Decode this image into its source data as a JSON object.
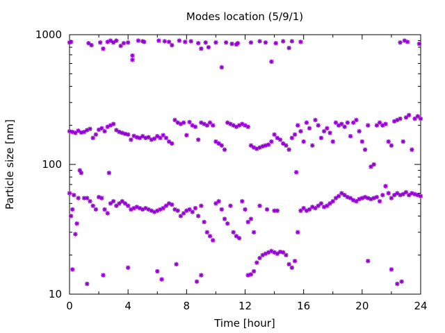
{
  "chart_data": {
    "type": "scatter",
    "title": "Modes location (5/9/1)",
    "xlabel": "Time [hour]",
    "ylabel": "Particle size [nm]",
    "xlim": [
      0,
      24
    ],
    "ylim": [
      10,
      1000
    ],
    "yscale": "log",
    "grid": false,
    "legend": "none",
    "marker_color": "#9400d3",
    "x_ticks": [
      "0",
      "4",
      "8",
      "12",
      "16",
      "20",
      "24"
    ],
    "x_tick_values": [
      0,
      4,
      8,
      12,
      16,
      20,
      24
    ],
    "y_ticks": [
      "10",
      "100",
      "1000"
    ],
    "y_tick_values": [
      10,
      100,
      1000
    ],
    "series": [
      {
        "values": [
          [
            0,
            870
          ],
          [
            0.1,
            880
          ],
          [
            1.3,
            860
          ],
          [
            1.5,
            830
          ],
          [
            2.1,
            870
          ],
          [
            2.3,
            780
          ],
          [
            2.6,
            880
          ],
          [
            2.8,
            900
          ],
          [
            3.0,
            870
          ],
          [
            3.2,
            900
          ],
          [
            3.5,
            820
          ],
          [
            3.7,
            860
          ],
          [
            4.0,
            870
          ],
          [
            4.3,
            690
          ],
          [
            4.3,
            640
          ],
          [
            4.7,
            900
          ],
          [
            5.0,
            890
          ],
          [
            5.1,
            880
          ],
          [
            6.1,
            900
          ],
          [
            6.5,
            890
          ],
          [
            6.8,
            880
          ],
          [
            7.0,
            830
          ],
          [
            7.5,
            900
          ],
          [
            7.9,
            880
          ],
          [
            8.3,
            890
          ],
          [
            8.8,
            860
          ],
          [
            9.0,
            780
          ],
          [
            9.3,
            870
          ],
          [
            9.5,
            800
          ],
          [
            10.0,
            870
          ],
          [
            10.4,
            560
          ],
          [
            10.7,
            870
          ],
          [
            11.1,
            850
          ],
          [
            11.4,
            840
          ],
          [
            11.5,
            860
          ],
          [
            12.4,
            870
          ],
          [
            13.0,
            890
          ],
          [
            13.4,
            870
          ],
          [
            13.8,
            620
          ],
          [
            14.1,
            860
          ],
          [
            14.6,
            890
          ],
          [
            15.0,
            790
          ],
          [
            15.2,
            890
          ],
          [
            15.8,
            880
          ],
          [
            22.6,
            870
          ],
          [
            22.9,
            900
          ],
          [
            23.1,
            880
          ],
          [
            23.9,
            850
          ],
          [
            0.0,
            180
          ],
          [
            0.2,
            178
          ],
          [
            0.4,
            175
          ],
          [
            0.6,
            182
          ],
          [
            0.8,
            176
          ],
          [
            1.0,
            178
          ],
          [
            1.2,
            184
          ],
          [
            1.4,
            188
          ],
          [
            1.6,
            160
          ],
          [
            1.8,
            170
          ],
          [
            2.0,
            185
          ],
          [
            2.2,
            190
          ],
          [
            2.4,
            180
          ],
          [
            2.6,
            195
          ],
          [
            2.8,
            200
          ],
          [
            3.0,
            205
          ],
          [
            3.2,
            184
          ],
          [
            3.4,
            178
          ],
          [
            3.6,
            175
          ],
          [
            3.8,
            172
          ],
          [
            4.0,
            170
          ],
          [
            4.2,
            155
          ],
          [
            4.4,
            166
          ],
          [
            4.6,
            162
          ],
          [
            4.8,
            160
          ],
          [
            5.0,
            165
          ],
          [
            5.2,
            160
          ],
          [
            5.4,
            162
          ],
          [
            5.6,
            155
          ],
          [
            5.8,
            158
          ],
          [
            6.0,
            165
          ],
          [
            6.2,
            160
          ],
          [
            6.4,
            168
          ],
          [
            6.6,
            160
          ],
          [
            6.8,
            150
          ],
          [
            7.0,
            145
          ],
          [
            7.2,
            220
          ],
          [
            7.4,
            210
          ],
          [
            7.6,
            205
          ],
          [
            7.8,
            210
          ],
          [
            8.0,
            168
          ],
          [
            8.2,
            212
          ],
          [
            8.4,
            200
          ],
          [
            8.6,
            195
          ],
          [
            8.8,
            155
          ],
          [
            9.0,
            210
          ],
          [
            9.2,
            205
          ],
          [
            9.4,
            200
          ],
          [
            9.6,
            210
          ],
          [
            9.8,
            200
          ],
          [
            10.0,
            150
          ],
          [
            10.2,
            145
          ],
          [
            10.4,
            140
          ],
          [
            10.6,
            130
          ],
          [
            10.8,
            210
          ],
          [
            11.0,
            205
          ],
          [
            11.2,
            200
          ],
          [
            11.4,
            195
          ],
          [
            11.6,
            200
          ],
          [
            11.8,
            205
          ],
          [
            12.0,
            200
          ],
          [
            12.2,
            195
          ],
          [
            12.4,
            140
          ],
          [
            12.6,
            135
          ],
          [
            12.8,
            132
          ],
          [
            13.0,
            135
          ],
          [
            13.2,
            138
          ],
          [
            13.4,
            140
          ],
          [
            13.6,
            142
          ],
          [
            13.8,
            150
          ],
          [
            14.0,
            170
          ],
          [
            14.2,
            160
          ],
          [
            14.4,
            155
          ],
          [
            14.6,
            145
          ],
          [
            14.8,
            140
          ],
          [
            15.0,
            130
          ],
          [
            15.2,
            160
          ],
          [
            15.4,
            170
          ],
          [
            15.6,
            200
          ],
          [
            15.8,
            180
          ],
          [
            16.0,
            150
          ],
          [
            16.2,
            210
          ],
          [
            16.4,
            190
          ],
          [
            16.6,
            140
          ],
          [
            16.8,
            220
          ],
          [
            17.0,
            200
          ],
          [
            17.2,
            160
          ],
          [
            17.4,
            180
          ],
          [
            17.6,
            190
          ],
          [
            17.8,
            175
          ],
          [
            18.0,
            150
          ],
          [
            18.2,
            210
          ],
          [
            18.4,
            200
          ],
          [
            18.6,
            205
          ],
          [
            18.8,
            195
          ],
          [
            19.0,
            210
          ],
          [
            19.2,
            165
          ],
          [
            19.4,
            210
          ],
          [
            19.6,
            220
          ],
          [
            19.8,
            180
          ],
          [
            20.0,
            150
          ],
          [
            20.2,
            130
          ],
          [
            20.4,
            200
          ],
          [
            20.6,
            96
          ],
          [
            20.8,
            100
          ],
          [
            21.0,
            200
          ],
          [
            21.2,
            210
          ],
          [
            21.4,
            200
          ],
          [
            21.6,
            205
          ],
          [
            21.8,
            150
          ],
          [
            22.0,
            140
          ],
          [
            22.2,
            215
          ],
          [
            22.4,
            220
          ],
          [
            22.6,
            225
          ],
          [
            22.8,
            150
          ],
          [
            23.0,
            230
          ],
          [
            23.2,
            240
          ],
          [
            23.4,
            130
          ],
          [
            23.6,
            225
          ],
          [
            23.8,
            235
          ],
          [
            24.0,
            225
          ],
          [
            0.0,
            60
          ],
          [
            0.1,
            40
          ],
          [
            0.2,
            45
          ],
          [
            0.3,
            58
          ],
          [
            0.5,
            35
          ],
          [
            0.6,
            55
          ],
          [
            0.7,
            90
          ],
          [
            0.8,
            86
          ],
          [
            1.0,
            55
          ],
          [
            1.2,
            55
          ],
          [
            1.4,
            52
          ],
          [
            1.6,
            48
          ],
          [
            1.8,
            45
          ],
          [
            2.0,
            56
          ],
          [
            2.2,
            55
          ],
          [
            2.4,
            45
          ],
          [
            2.6,
            42
          ],
          [
            2.8,
            50
          ],
          [
            3.0,
            52
          ],
          [
            3.2,
            48
          ],
          [
            3.4,
            50
          ],
          [
            3.6,
            52
          ],
          [
            3.8,
            50
          ],
          [
            4.0,
            48
          ],
          [
            4.2,
            45
          ],
          [
            4.4,
            46
          ],
          [
            4.6,
            47
          ],
          [
            4.8,
            46
          ],
          [
            5.0,
            45
          ],
          [
            5.2,
            46
          ],
          [
            5.4,
            45
          ],
          [
            5.6,
            44
          ],
          [
            5.8,
            43
          ],
          [
            6.0,
            44
          ],
          [
            6.2,
            45
          ],
          [
            6.4,
            46
          ],
          [
            6.6,
            48
          ],
          [
            6.8,
            50
          ],
          [
            7.0,
            49
          ],
          [
            7.2,
            45
          ],
          [
            7.4,
            44
          ],
          [
            7.6,
            40
          ],
          [
            7.8,
            42
          ],
          [
            8.0,
            44
          ],
          [
            8.2,
            45
          ],
          [
            8.4,
            43
          ],
          [
            8.6,
            46
          ],
          [
            8.8,
            40
          ],
          [
            9.0,
            48
          ],
          [
            9.2,
            36
          ],
          [
            9.4,
            30
          ],
          [
            9.6,
            28
          ],
          [
            9.8,
            26
          ],
          [
            10.0,
            50
          ],
          [
            10.2,
            52
          ],
          [
            10.4,
            45
          ],
          [
            10.6,
            38
          ],
          [
            10.8,
            35
          ],
          [
            11.0,
            48
          ],
          [
            11.2,
            30
          ],
          [
            11.4,
            28
          ],
          [
            11.6,
            27
          ],
          [
            11.8,
            52
          ],
          [
            12.0,
            45
          ],
          [
            12.2,
            36
          ],
          [
            12.4,
            38
          ],
          [
            12.6,
            30
          ],
          [
            13.0,
            48
          ],
          [
            13.5,
            45
          ],
          [
            14.0,
            44
          ],
          [
            14.2,
            44
          ],
          [
            15.6,
            30
          ],
          [
            15.8,
            44
          ],
          [
            16.0,
            46
          ],
          [
            16.2,
            44
          ],
          [
            16.4,
            45
          ],
          [
            16.6,
            47
          ],
          [
            16.8,
            46
          ],
          [
            17.0,
            48
          ],
          [
            17.2,
            50
          ],
          [
            17.4,
            47
          ],
          [
            17.6,
            48
          ],
          [
            17.8,
            50
          ],
          [
            18.0,
            52
          ],
          [
            18.2,
            55
          ],
          [
            18.4,
            57
          ],
          [
            18.6,
            60
          ],
          [
            18.8,
            58
          ],
          [
            19.0,
            56
          ],
          [
            19.2,
            55
          ],
          [
            19.4,
            53
          ],
          [
            19.6,
            52
          ],
          [
            19.8,
            54
          ],
          [
            20.0,
            55
          ],
          [
            20.2,
            56
          ],
          [
            20.4,
            55
          ],
          [
            20.6,
            54
          ],
          [
            20.8,
            55
          ],
          [
            21.0,
            56
          ],
          [
            21.2,
            52
          ],
          [
            21.4,
            58
          ],
          [
            21.6,
            68
          ],
          [
            21.8,
            60
          ],
          [
            22.0,
            55
          ],
          [
            22.2,
            58
          ],
          [
            22.4,
            60
          ],
          [
            22.6,
            58
          ],
          [
            22.8,
            59
          ],
          [
            23.0,
            61
          ],
          [
            23.2,
            58
          ],
          [
            23.4,
            60
          ],
          [
            23.6,
            59
          ],
          [
            23.8,
            58
          ],
          [
            24.0,
            57
          ],
          [
            0.2,
            15.5
          ],
          [
            0.4,
            29
          ],
          [
            1.2,
            12
          ],
          [
            2.3,
            14
          ],
          [
            2.7,
            86
          ],
          [
            4.0,
            16
          ],
          [
            6.0,
            15
          ],
          [
            6.3,
            13
          ],
          [
            7.3,
            17
          ],
          [
            8.7,
            12.5
          ],
          [
            9.0,
            14
          ],
          [
            15.5,
            87
          ],
          [
            12.2,
            14
          ],
          [
            12.4,
            14.2
          ],
          [
            12.6,
            15
          ],
          [
            12.8,
            17.5
          ],
          [
            13.0,
            19
          ],
          [
            13.2,
            20
          ],
          [
            13.4,
            20.5
          ],
          [
            13.6,
            21
          ],
          [
            13.8,
            21.5
          ],
          [
            14.0,
            21
          ],
          [
            14.2,
            20.5
          ],
          [
            14.4,
            21.2
          ],
          [
            14.6,
            21
          ],
          [
            14.8,
            20
          ],
          [
            15.0,
            17
          ],
          [
            15.2,
            16
          ],
          [
            15.4,
            18
          ],
          [
            20.4,
            18
          ],
          [
            22.0,
            15.5
          ],
          [
            22.4,
            12
          ],
          [
            22.7,
            12.5
          ]
        ]
      }
    ]
  }
}
